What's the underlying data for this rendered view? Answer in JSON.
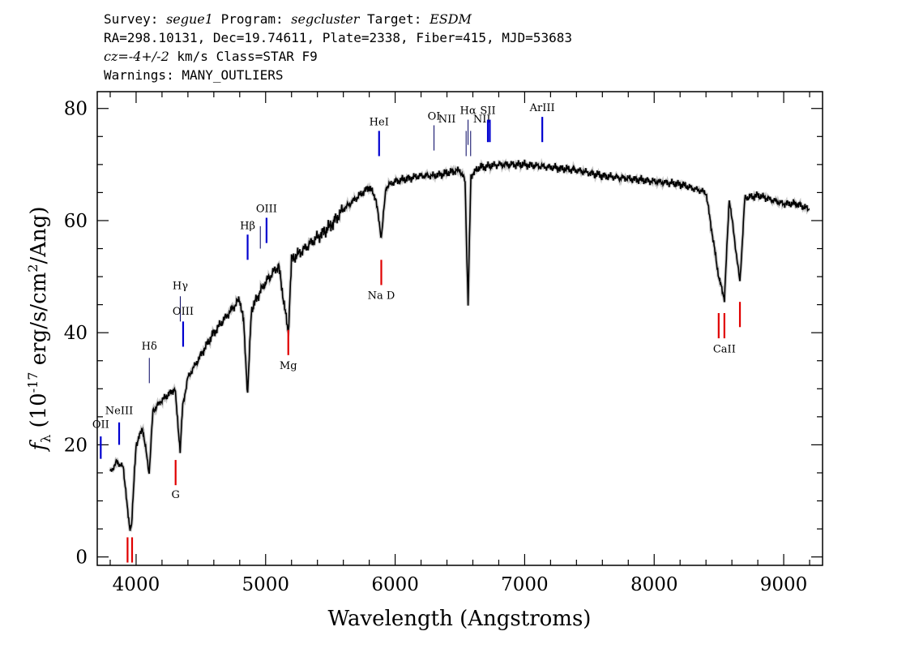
{
  "header": {
    "survey_label": "Survey:",
    "survey": "segue1",
    "program_label": "Program:",
    "program": "segcluster",
    "target_label": "Target:",
    "target": "ESDM",
    "line2": "RA=298.10131, Dec=19.74611, Plate=2338, Fiber=415, MJD=53683",
    "cz_label": "cz=",
    "cz_value": "-4+/-2",
    "cz_unit": " km/s Class=STAR F9",
    "warnings": "Warnings: MANY_OUTLIERS"
  },
  "chart_data": {
    "type": "line",
    "xlabel": "Wavelength (Angstroms)",
    "ylabel": "f_λ (10^-17 erg/s/cm²/Ang)",
    "xlim": [
      3700,
      9300
    ],
    "ylim": [
      -1.5,
      83
    ],
    "x_ticks": [
      4000,
      5000,
      6000,
      7000,
      8000,
      9000
    ],
    "y_ticks": [
      0,
      20,
      40,
      60,
      80
    ],
    "series": [
      {
        "color": "#000000",
        "x": [
          3800,
          3850,
          3900,
          3920,
          3935,
          3950,
          3965,
          3980,
          4000,
          4050,
          4101,
          4130,
          4200,
          4250,
          4300,
          4340,
          4360,
          4400,
          4500,
          4600,
          4700,
          4800,
          4830,
          4861,
          4890,
          4950,
          5000,
          5100,
          5175,
          5200,
          5300,
          5400,
          5500,
          5600,
          5700,
          5800,
          5850,
          5893,
          5930,
          6000,
          6100,
          6200,
          6300,
          6400,
          6500,
          6540,
          6563,
          6585,
          6650,
          6800,
          7000,
          7200,
          7400,
          7600,
          7800,
          8000,
          8200,
          8400,
          8498,
          8542,
          8580,
          8662,
          8700,
          8800,
          9000,
          9100,
          9200
        ],
        "y": [
          15,
          17,
          16,
          12,
          8,
          5,
          6,
          12,
          20,
          23,
          15,
          26,
          28,
          29,
          30,
          19,
          27,
          32,
          36,
          40,
          43,
          46,
          42,
          29,
          44,
          47,
          49,
          52,
          40,
          53,
          55,
          57,
          59,
          62,
          64,
          66,
          64,
          57,
          66,
          67,
          67.5,
          68,
          68,
          68.5,
          69,
          67,
          45,
          68,
          69.5,
          70,
          70,
          69.5,
          69,
          68,
          67.5,
          67,
          66.5,
          65,
          50,
          46,
          64,
          49,
          64,
          64.5,
          63,
          63,
          62
        ]
      }
    ],
    "line_markers": {
      "emission": [
        {
          "label": "OII",
          "x": 3727,
          "y1": 17.5,
          "y2": 21.5,
          "label_y": 23
        },
        {
          "label": "NeIII",
          "x": 3869,
          "y1": 20,
          "y2": 24,
          "label_y": 25.5
        },
        {
          "label": "Hδ",
          "x": 4102,
          "y1": 31,
          "y2": 35.5,
          "label_y": 37,
          "thin": true
        },
        {
          "label": "Hγ",
          "x": 4341,
          "y1": 42,
          "y2": 46.5,
          "label_y": 47.8,
          "thin": true
        },
        {
          "label": "OIII",
          "x": 4363,
          "y1": 37.5,
          "y2": 42,
          "label_y": 43.2
        },
        {
          "label": "Hβ",
          "x": 4861,
          "y1": 53,
          "y2": 57.5,
          "label_y": 58.5
        },
        {
          "label": "OIII",
          "x": 4959,
          "y1": 55,
          "y2": 59,
          "label_y": 61.5,
          "thin": true,
          "nolabel": true
        },
        {
          "label": "OIII",
          "x": 5007,
          "y1": 56,
          "y2": 60.5,
          "label_y": 61.5
        },
        {
          "label": "HeI",
          "x": 5876,
          "y1": 71.5,
          "y2": 76,
          "label_y": 77
        },
        {
          "label": "OI",
          "x": 6300,
          "y1": 72.5,
          "y2": 77,
          "label_y": 78,
          "thin": true
        },
        {
          "label": "NII",
          "x": 6548,
          "y1": 71.5,
          "y2": 76,
          "label_y": 77.5,
          "thin": true,
          "label_x": 6400
        },
        {
          "label": "Hα",
          "x": 6563,
          "y1": 73.5,
          "y2": 78,
          "label_y": 79,
          "thin": true
        },
        {
          "label": "NII",
          "x": 6583,
          "y1": 71.5,
          "y2": 76,
          "label_y": 77.5,
          "thin": true,
          "label_x": 6670
        },
        {
          "label": "SII",
          "x": 6716,
          "y1": 74,
          "y2": 78,
          "label_y": 79
        },
        {
          "label": "SII",
          "x": 6731,
          "y1": 74,
          "y2": 78,
          "nolabel": true
        },
        {
          "label": "ArIII",
          "x": 7136,
          "y1": 74,
          "y2": 78.5,
          "label_y": 79.5
        }
      ],
      "absorption": [
        {
          "label": "",
          "x": 3934,
          "y1": -1,
          "y2": 3.5
        },
        {
          "label": "",
          "x": 3969,
          "y1": -1,
          "y2": 3.5
        },
        {
          "label": "G",
          "x": 4305,
          "y1": 12.8,
          "y2": 17.3,
          "label_y": 10.5
        },
        {
          "label": "Mg",
          "x": 5175,
          "y1": 36,
          "y2": 40.5,
          "label_y": 33.5
        },
        {
          "label": "Na D",
          "x": 5893,
          "y1": 48.5,
          "y2": 53,
          "label_y": 46
        },
        {
          "label": "CaII",
          "x": 8498,
          "y1": 39,
          "y2": 43.5,
          "label_y": 36.5,
          "nolabel": true
        },
        {
          "label": "CaII",
          "x": 8542,
          "y1": 39,
          "y2": 43.5,
          "label_y": 36.5
        },
        {
          "label": "CaII",
          "x": 8662,
          "y1": 41,
          "y2": 45.5,
          "nolabel": true
        }
      ]
    }
  }
}
